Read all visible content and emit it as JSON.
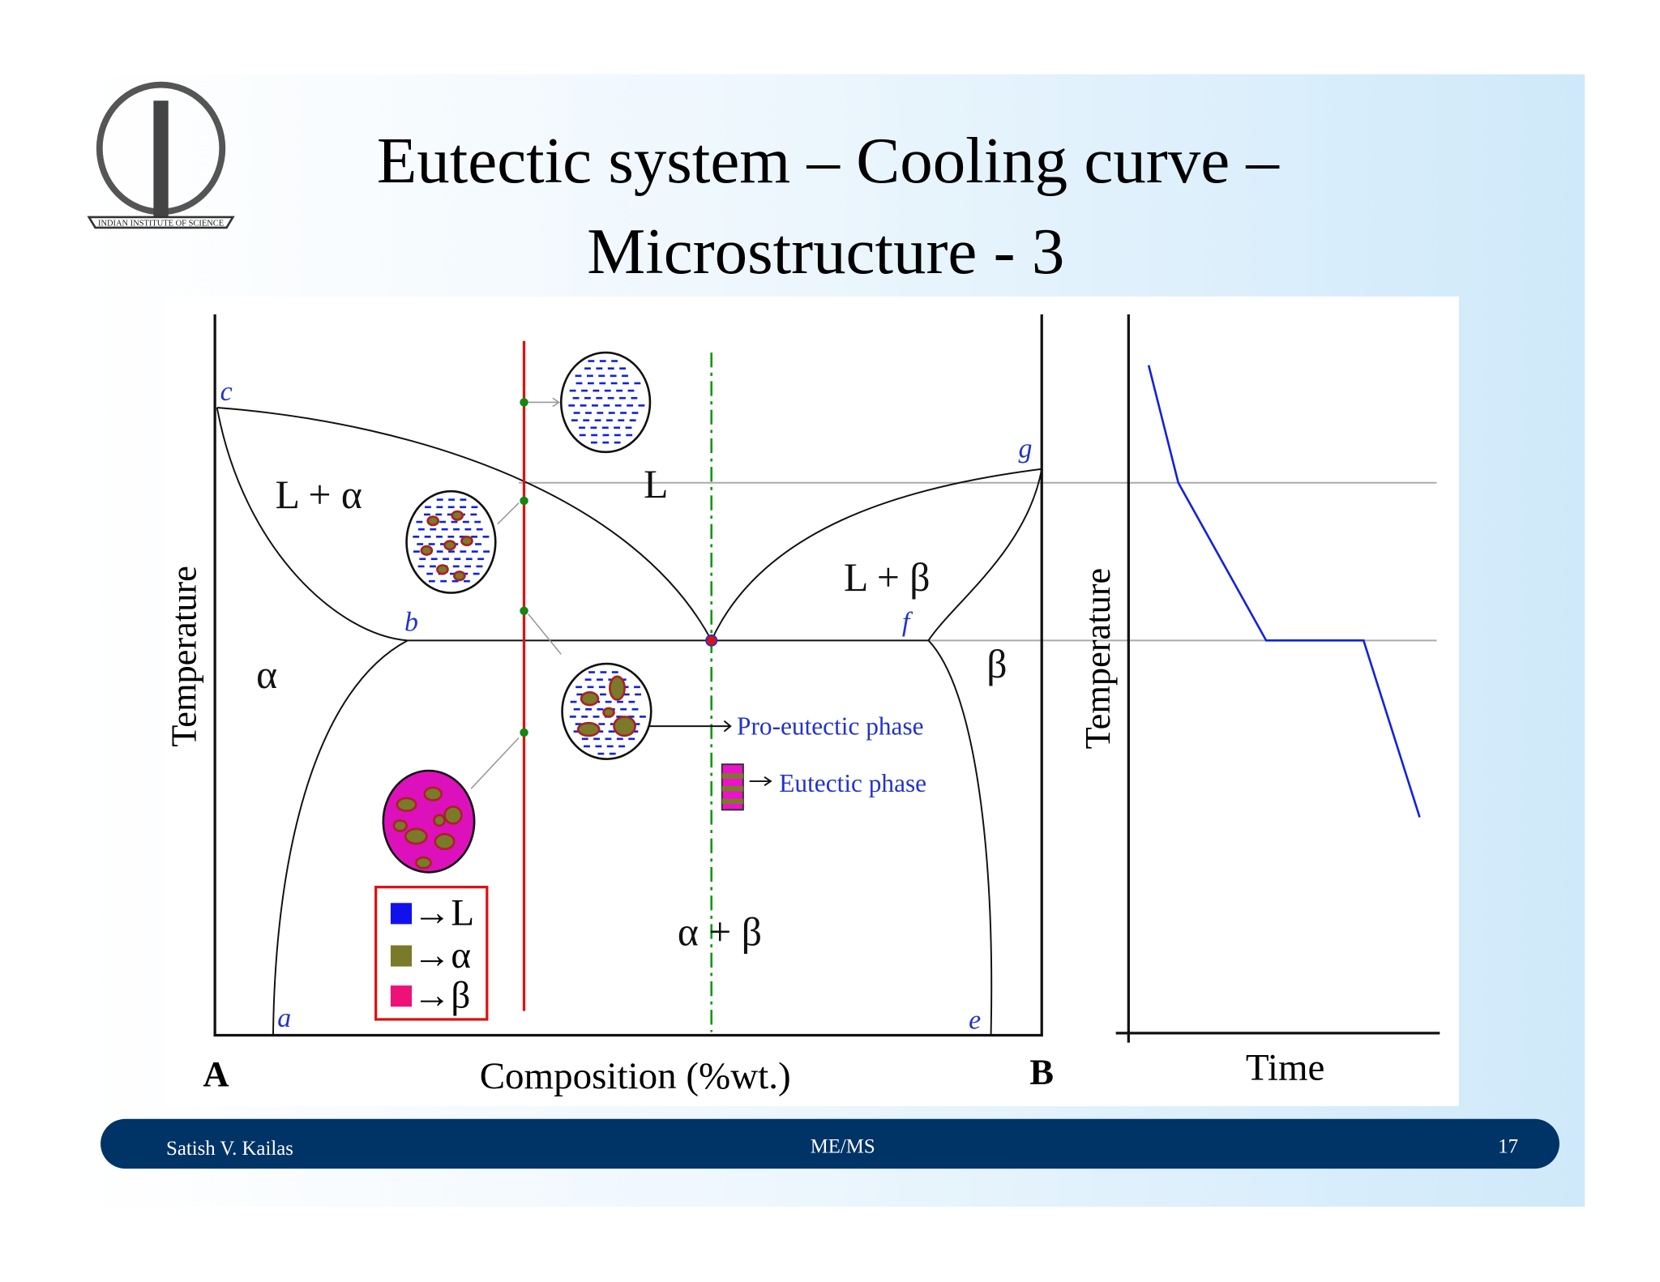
{
  "slide": {
    "title": [
      "Eutectic system – Cooling curve –",
      "Microstructure - 3"
    ],
    "logo": {
      "text": "INDIAN INSTITUTE OF SCIENCE"
    },
    "phase_diagram": {
      "points": {
        "c": "c",
        "g": "g",
        "b": "b",
        "f": "f",
        "a": "a",
        "e": "e"
      },
      "regions": {
        "l_alpha": "L + α",
        "l": "L",
        "l_beta": "L + β",
        "alpha": "α",
        "beta": "β",
        "alpha_beta": "α + β"
      },
      "annotations": {
        "pro_eutectic": "Pro-eutectic phase",
        "eutectic": "Eutectic phase"
      },
      "legend": [
        "→L",
        "→α",
        "→β"
      ],
      "y_label": "Temperature",
      "x_label": "Composition (%wt.)",
      "x_left": "A",
      "x_right": "B"
    },
    "cooling_curve": {
      "y_label": "Temperature",
      "x_label": "Time"
    },
    "footer": {
      "author": "Satish V. Kailas",
      "dept": "ME/MS",
      "page": "17"
    }
  }
}
